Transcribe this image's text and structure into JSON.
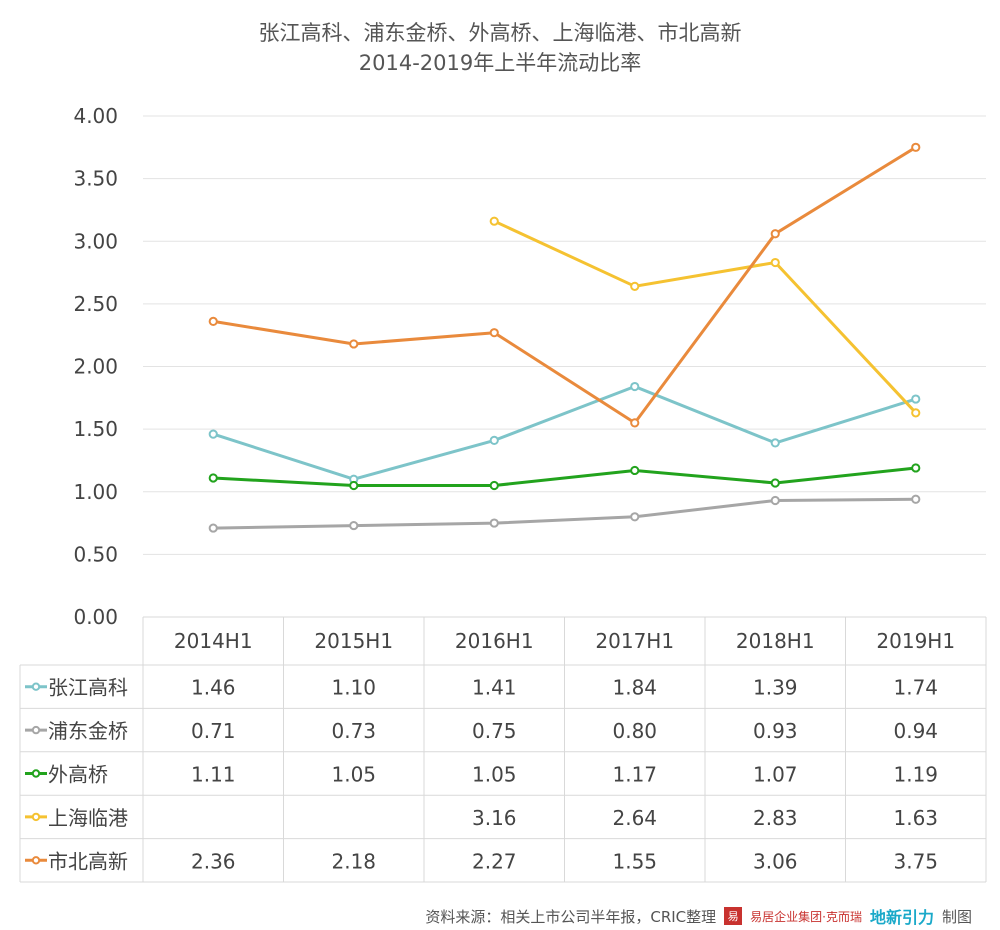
{
  "chart_data": {
    "type": "line",
    "title": "张江高科、浦东金桥、外高桥、上海临港、市北高新",
    "subtitle": "2014-2019年上半年流动比率",
    "categories": [
      "2014H1",
      "2015H1",
      "2016H1",
      "2017H1",
      "2018H1",
      "2019H1"
    ],
    "ylim": [
      0,
      4
    ],
    "yticks": [
      "0.00",
      "0.50",
      "1.00",
      "1.50",
      "2.00",
      "2.50",
      "3.00",
      "3.50",
      "4.00"
    ],
    "grid": true,
    "legend": "data-table",
    "series": [
      {
        "name": "张江高科",
        "color": "#7dc4c9",
        "values": [
          1.46,
          1.1,
          1.41,
          1.84,
          1.39,
          1.74
        ],
        "labels": [
          "1.46",
          "1.10",
          "1.41",
          "1.84",
          "1.39",
          "1.74"
        ]
      },
      {
        "name": "浦东金桥",
        "color": "#a6a6a6",
        "values": [
          0.71,
          0.73,
          0.75,
          0.8,
          0.93,
          0.94
        ],
        "labels": [
          "0.71",
          "0.73",
          "0.75",
          "0.80",
          "0.93",
          "0.94"
        ]
      },
      {
        "name": "外高桥",
        "color": "#22a31d",
        "values": [
          1.11,
          1.05,
          1.05,
          1.17,
          1.07,
          1.19
        ],
        "labels": [
          "1.11",
          "1.05",
          "1.05",
          "1.17",
          "1.07",
          "1.19"
        ]
      },
      {
        "name": "上海临港",
        "color": "#f5c231",
        "values": [
          null,
          null,
          3.16,
          2.64,
          2.83,
          1.63
        ],
        "labels": [
          "",
          "",
          "3.16",
          "2.64",
          "2.83",
          "1.63"
        ]
      },
      {
        "name": "市北高新",
        "color": "#e98a3c",
        "values": [
          2.36,
          2.18,
          2.27,
          1.55,
          3.06,
          3.75
        ],
        "labels": [
          "2.36",
          "2.18",
          "2.27",
          "1.55",
          "3.06",
          "3.75"
        ]
      }
    ]
  },
  "footer": {
    "source": "资料来源：相关上市公司半年报，CRIC整理",
    "logo_box": "易",
    "logo_text": "易居企业集团·克而瑞",
    "logo2": "地新引力",
    "made_by": "制图"
  }
}
